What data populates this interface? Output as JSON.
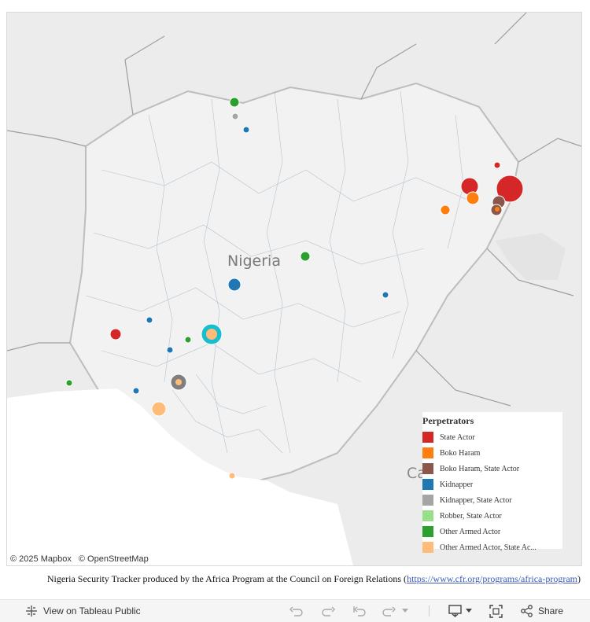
{
  "map": {
    "country_label": "Nigeria",
    "partial_label": "Ca",
    "attribution": [
      "© 2025 Mapbox",
      "© OpenStreetMap"
    ]
  },
  "legend": {
    "title": "Perpetrators",
    "items": [
      {
        "label": "State Actor",
        "color": "#d62728"
      },
      {
        "label": "Boko Haram",
        "color": "#ff7f0e"
      },
      {
        "label": "Boko Haram, State Actor",
        "color": "#8c564b"
      },
      {
        "label": "Kidnapper",
        "color": "#1f77b4"
      },
      {
        "label": "Kidnapper, State Actor",
        "color": "#a5a5a5"
      },
      {
        "label": "Robber, State Actor",
        "color": "#98df8a"
      },
      {
        "label": "Other Armed Actor",
        "color": "#2ca02c"
      },
      {
        "label": "Other Armed Actor, State Ac...",
        "color": "#ffbb78"
      }
    ]
  },
  "caption": {
    "text": "Nigeria Security Tracker produced by the Africa Program at the Council on Foreign Relations (",
    "link": "https://www.cfr.org/programs/africa-program",
    "close": ")"
  },
  "toolbar": {
    "view_label": "View on Tableau Public",
    "share_label": "Share",
    "icons": [
      "tableau-logo-icon",
      "undo-icon",
      "redo-icon",
      "revert-icon",
      "refresh-icon",
      "download-icon",
      "fullscreen-icon",
      "share-icon"
    ]
  }
}
